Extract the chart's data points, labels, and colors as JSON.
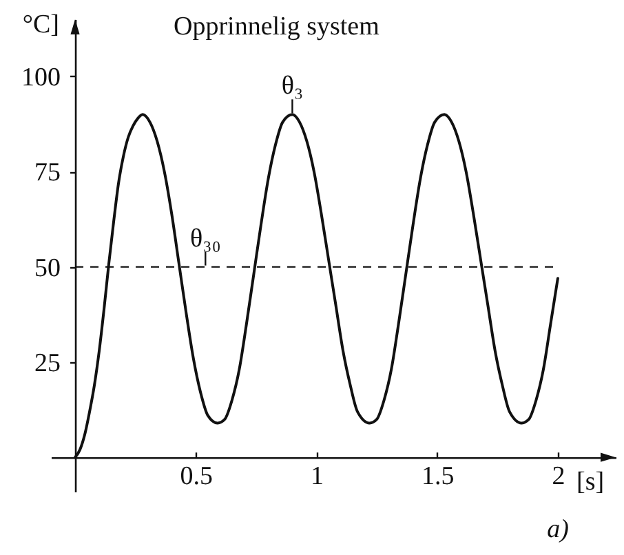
{
  "chart_data": {
    "type": "line",
    "title": "Opprinnelig system",
    "xlabel": "[s]",
    "ylabel": "°C]",
    "xlim": [
      -0.1,
      2.24
    ],
    "ylim": [
      -9,
      115
    ],
    "xticks": [
      0.5,
      1,
      1.5,
      2
    ],
    "yticks": [
      25,
      50,
      75,
      100
    ],
    "x": [
      0,
      0.02,
      0.04,
      0.06,
      0.08,
      0.1,
      0.12,
      0.14,
      0.16,
      0.18,
      0.2,
      0.22,
      0.24,
      0.26,
      0.28,
      0.31,
      0.34,
      0.37,
      0.4,
      0.43,
      0.46,
      0.49,
      0.52,
      0.55,
      0.59,
      0.62,
      0.65,
      0.68,
      0.71,
      0.74,
      0.77,
      0.8,
      0.83,
      0.86,
      0.9,
      0.93,
      0.96,
      0.99,
      1.02,
      1.05,
      1.08,
      1.11,
      1.14,
      1.17,
      1.22,
      1.25,
      1.28,
      1.31,
      1.34,
      1.37,
      1.4,
      1.43,
      1.46,
      1.49,
      1.53,
      1.56,
      1.59,
      1.62,
      1.65,
      1.68,
      1.71,
      1.74,
      1.77,
      1.8,
      1.85,
      1.88,
      1.91,
      1.94,
      1.97,
      2.0
    ],
    "series": [
      {
        "color": "#111111",
        "values": [
          0,
          2,
          6,
          12,
          19,
          28,
          39,
          51,
          62,
          72,
          79,
          84,
          87,
          89,
          90,
          88,
          83,
          75,
          64,
          51,
          38,
          26,
          17,
          11,
          9,
          10,
          15,
          23,
          35,
          48,
          61,
          73,
          82,
          88,
          90,
          88,
          83,
          75,
          64,
          52,
          40,
          28,
          19,
          12,
          9,
          10,
          15,
          23,
          35,
          48,
          61,
          73,
          82,
          88,
          90,
          88,
          83,
          75,
          64,
          52,
          40,
          28,
          19,
          12,
          9,
          10,
          15,
          23,
          35,
          47
        ]
      }
    ],
    "ref_lines": [
      {
        "axis": "y",
        "value": 50,
        "line_style": "dashed",
        "color": "#111111"
      }
    ],
    "annotations": [
      {
        "text": "θ₃",
        "x": 0.9,
        "y": 90
      },
      {
        "text": "θ₃₀",
        "x": 0.54,
        "y": 50
      },
      "a)"
    ]
  }
}
